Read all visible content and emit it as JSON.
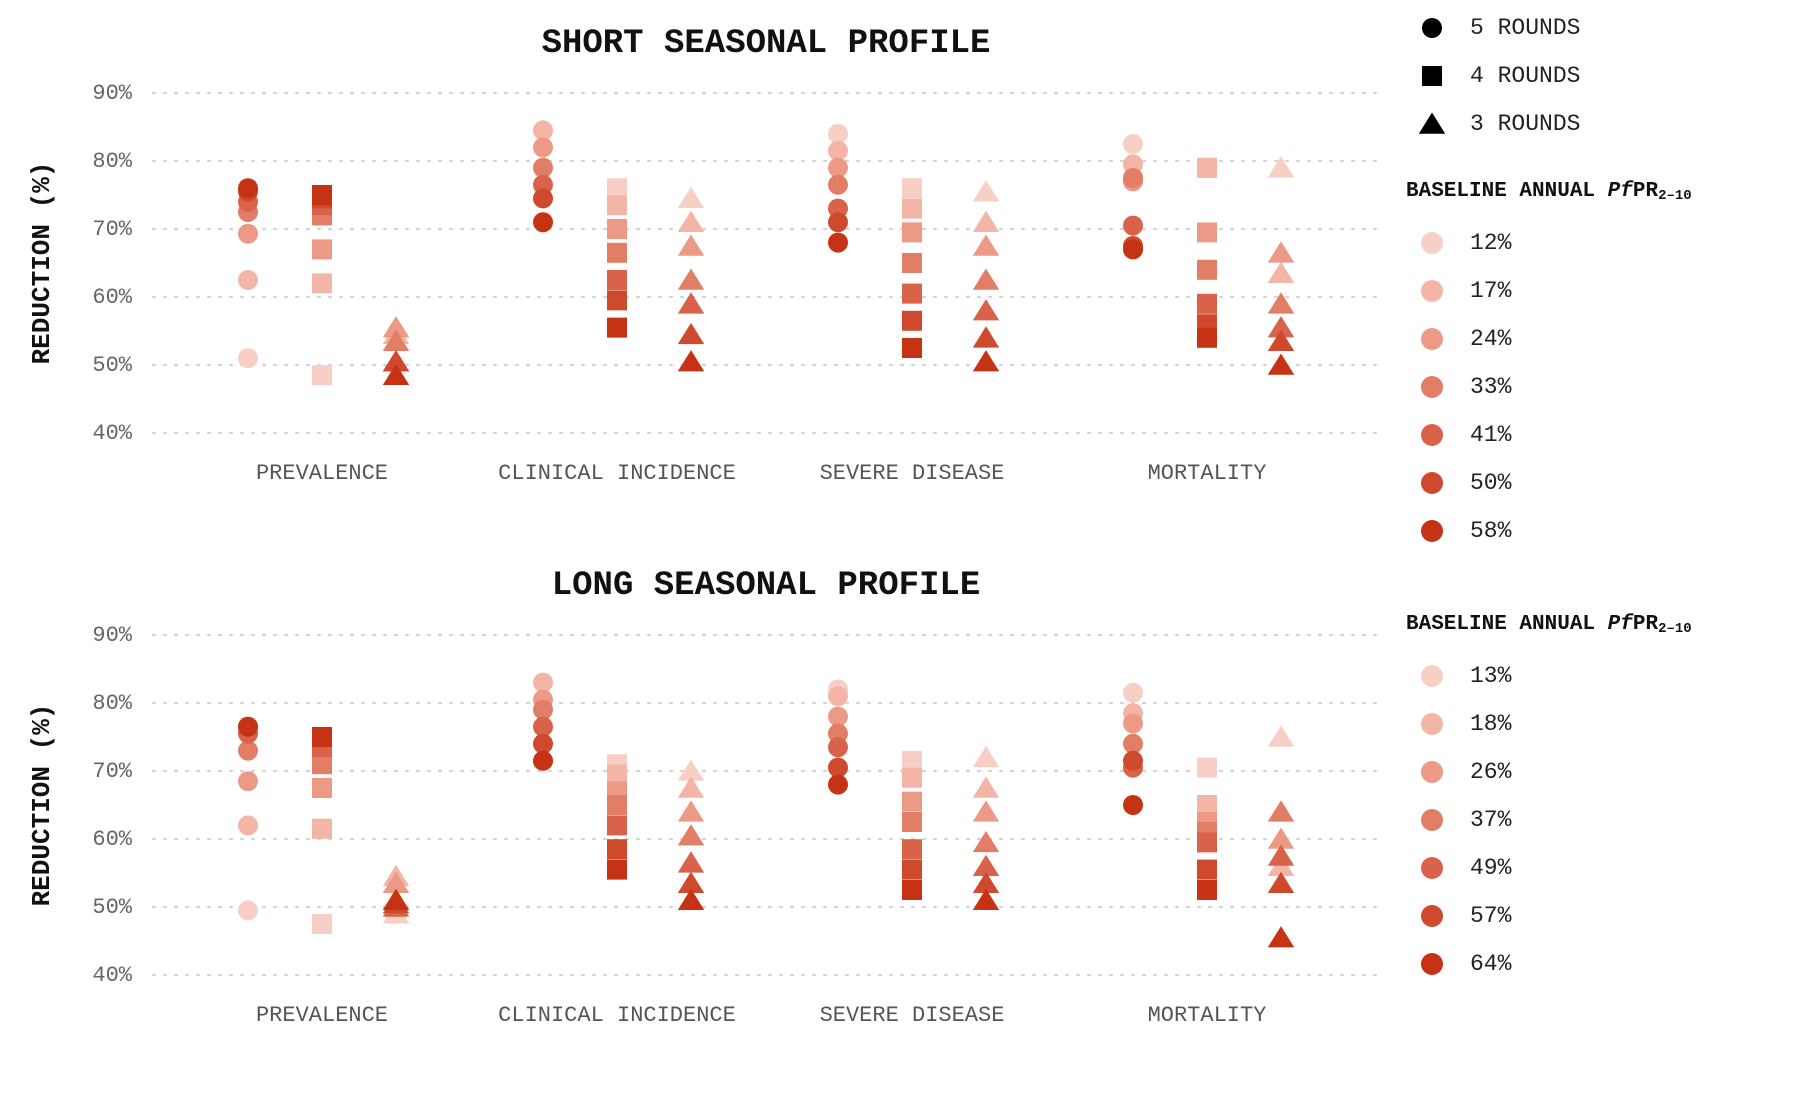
{
  "colors": {
    "pfpr_scale": [
      "#f8cfc5",
      "#f3b5a5",
      "#ec9a86",
      "#e27d66",
      "#d8624a",
      "#cf4a2d",
      "#c63214"
    ],
    "marker_legend": "#000000",
    "grid": "#d4d4d4"
  },
  "legend": {
    "rounds": [
      {
        "marker": "circle",
        "label": "5 ROUNDS"
      },
      {
        "marker": "square",
        "label": "4 ROUNDS"
      },
      {
        "marker": "triangle",
        "label": "3 ROUNDS"
      }
    ],
    "groups": [
      {
        "title_prefix": "BASELINE ANNUAL ",
        "title_italic": "Pf",
        "title_main": "PR",
        "title_sub": "2–10",
        "items": [
          "12%",
          "17%",
          "24%",
          "33%",
          "41%",
          "50%",
          "58%"
        ]
      },
      {
        "title_prefix": "BASELINE ANNUAL ",
        "title_italic": "Pf",
        "title_main": "PR",
        "title_sub": "2–10",
        "items": [
          "13%",
          "18%",
          "26%",
          "37%",
          "49%",
          "57%",
          "64%"
        ]
      }
    ]
  },
  "chart_data": [
    {
      "type": "scatter",
      "title": "SHORT SEASONAL PROFILE",
      "ylabel": "REDUCTION (%)",
      "ylim": [
        40,
        90
      ],
      "yticks": [
        "40%",
        "50%",
        "60%",
        "70%",
        "80%",
        "90%"
      ],
      "grid": true,
      "categories": [
        "PREVALENCE",
        "CLINICAL INCIDENCE",
        "SEVERE DISEASE",
        "MORTALITY"
      ],
      "series": [
        {
          "name": "5 ROUNDS",
          "marker": "circle",
          "values": [
            [
              51,
              62.5,
              69.3,
              72.5,
              74,
              75.5,
              76
            ],
            [
              71,
              84.5,
              82,
              79,
              76.5,
              74.5,
              71
            ],
            [
              84,
              81.5,
              79,
              76.5,
              73,
              71,
              68
            ],
            [
              82.5,
              79.5,
              77,
              77.5,
              70.5,
              67.5,
              67
            ]
          ]
        },
        {
          "name": "4 ROUNDS",
          "marker": "square",
          "values": [
            [
              48.5,
              62,
              67,
              72,
              73.5,
              74.5,
              75
            ],
            [
              76,
              73.5,
              70,
              66.5,
              62.5,
              59.5,
              55.5
            ],
            [
              76,
              73,
              69.5,
              65,
              60.5,
              56.5,
              52.5
            ],
            [
              79,
              79,
              69.5,
              64,
              59,
              56,
              54
            ]
          ]
        },
        {
          "name": "3 ROUNDS",
          "marker": "triangle",
          "values": [
            [
              55.5,
              54.5,
              55.5,
              53.5,
              50.5,
              50.5,
              48.5
            ],
            [
              74.5,
              71,
              67.5,
              62.5,
              59,
              54.5,
              50.5
            ],
            [
              75.5,
              71,
              67.5,
              62.5,
              58,
              54,
              50.5
            ],
            [
              79,
              63.5,
              66.5,
              59,
              55.5,
              53.5,
              50
            ]
          ]
        }
      ]
    },
    {
      "type": "scatter",
      "title": "LONG SEASONAL PROFILE",
      "ylabel": "REDUCTION (%)",
      "ylim": [
        40,
        90
      ],
      "yticks": [
        "40%",
        "50%",
        "60%",
        "70%",
        "80%",
        "90%"
      ],
      "grid": true,
      "categories": [
        "PREVALENCE",
        "CLINICAL INCIDENCE",
        "SEVERE DISEASE",
        "MORTALITY"
      ],
      "series": [
        {
          "name": "5 ROUNDS",
          "marker": "circle",
          "values": [
            [
              49.5,
              62,
              68.5,
              73,
              75.5,
              76.5,
              76.5
            ],
            [
              71.5,
              83,
              80.5,
              79,
              76.5,
              74,
              71.5
            ],
            [
              82,
              81,
              78,
              75.5,
              73.5,
              70.5,
              68
            ],
            [
              81.5,
              78.5,
              77,
              74,
              70.5,
              71.5,
              65
            ]
          ]
        },
        {
          "name": "4 ROUNDS",
          "marker": "square",
          "values": [
            [
              47.5,
              61.5,
              67.5,
              71,
              73.5,
              75,
              75
            ],
            [
              71,
              69.5,
              67,
              65,
              62,
              58.5,
              55.5
            ],
            [
              71.5,
              69,
              65.5,
              62.5,
              58.5,
              55.5,
              52.5
            ],
            [
              70.5,
              65,
              62.5,
              61,
              59.5,
              55.5,
              52.5
            ]
          ]
        },
        {
          "name": "3 ROUNDS",
          "marker": "triangle",
          "values": [
            [
              49,
              54.5,
              53.5,
              51,
              50,
              50.5,
              51
            ],
            [
              70,
              67.5,
              64,
              60.5,
              56.5,
              53.5,
              51
            ],
            [
              72,
              67.5,
              64,
              59.5,
              56,
              53.5,
              51
            ],
            [
              75,
              56,
              60,
              64,
              57.5,
              53.5,
              45.5
            ]
          ]
        }
      ]
    }
  ]
}
